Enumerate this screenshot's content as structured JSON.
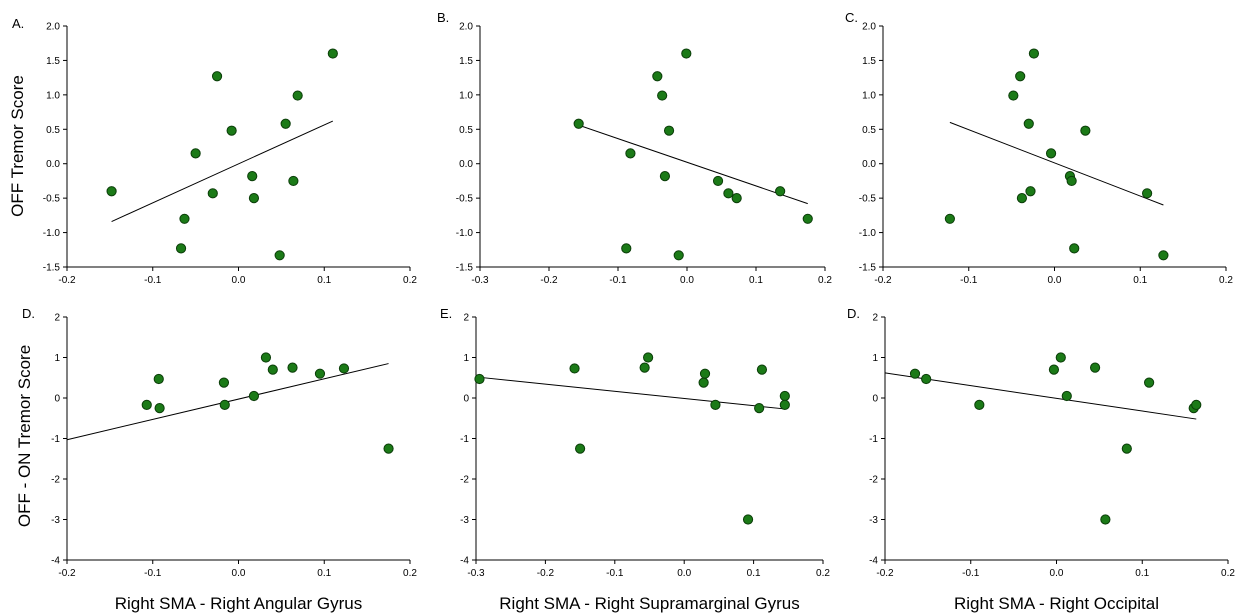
{
  "ylabels": [
    {
      "text": "OFF Tremor Score",
      "row": 0
    },
    {
      "text": "OFF - ON Tremor Score",
      "row": 1
    }
  ],
  "chart_data": [
    {
      "type": "scatter",
      "label": "A.",
      "xlabel": "",
      "xlim": [
        -0.2,
        0.2
      ],
      "ylim": [
        -1.5,
        2.0
      ],
      "xticks": [
        "-0.2",
        "-0.1",
        "0.0",
        "0.1",
        "0.2"
      ],
      "yticks": [
        "-1.5",
        "-1.0",
        "-0.5",
        "0.0",
        "0.5",
        "1.0",
        "1.5",
        "2.0"
      ],
      "x": [
        -0.148,
        -0.067,
        -0.063,
        -0.05,
        -0.03,
        -0.025,
        -0.008,
        0.016,
        0.018,
        0.048,
        0.055,
        0.064,
        0.069,
        0.11
      ],
      "y": [
        -0.4,
        -1.23,
        -0.8,
        0.15,
        -0.43,
        1.27,
        0.48,
        -0.18,
        -0.5,
        -1.33,
        0.58,
        -0.25,
        0.99,
        1.6
      ],
      "fit": {
        "x": [
          -0.148,
          0.11
        ],
        "y": [
          -0.84,
          0.62
        ]
      }
    },
    {
      "type": "scatter",
      "label": "B.",
      "xlabel": "",
      "xlim": [
        -0.3,
        0.2
      ],
      "ylim": [
        -1.5,
        2.0
      ],
      "xticks": [
        "-0.3",
        "-0.2",
        "-0.1",
        "0.0",
        "0.1",
        "0.2"
      ],
      "yticks": [
        "-1.5",
        "-1.0",
        "-0.5",
        "0.0",
        "0.5",
        "1.0",
        "1.5",
        "2.0"
      ],
      "x": [
        -0.157,
        -0.088,
        -0.082,
        -0.043,
        -0.036,
        -0.032,
        -0.026,
        -0.012,
        -0.001,
        0.045,
        0.06,
        0.072,
        0.135,
        0.175
      ],
      "y": [
        0.58,
        -1.23,
        0.15,
        1.27,
        0.99,
        -0.18,
        0.48,
        -1.33,
        1.6,
        -0.25,
        -0.43,
        -0.5,
        -0.4,
        -0.8
      ],
      "fit": {
        "x": [
          -0.157,
          0.175
        ],
        "y": [
          0.56,
          -0.58
        ]
      }
    },
    {
      "type": "scatter",
      "label": "C.",
      "xlabel": "",
      "xlim": [
        -0.2,
        0.2
      ],
      "ylim": [
        -1.5,
        2.0
      ],
      "xticks": [
        "-0.2",
        "-0.1",
        "0.0",
        "0.1",
        "0.2"
      ],
      "yticks": [
        "-1.5",
        "-1.0",
        "-0.5",
        "0.0",
        "0.5",
        "1.0",
        "1.5",
        "2.0"
      ],
      "x": [
        -0.122,
        -0.048,
        -0.04,
        -0.038,
        -0.03,
        -0.028,
        -0.024,
        -0.004,
        0.018,
        0.02,
        0.023,
        0.036,
        0.108,
        0.127
      ],
      "y": [
        -0.8,
        0.99,
        1.27,
        -0.5,
        0.58,
        -0.4,
        1.6,
        0.15,
        -0.18,
        -0.25,
        -1.23,
        0.48,
        -0.43,
        -1.33
      ],
      "fit": {
        "x": [
          -0.122,
          0.127
        ],
        "y": [
          0.6,
          -0.6
        ]
      }
    },
    {
      "type": "scatter",
      "label": "D.",
      "xlabel": "Right SMA - Right Angular Gyrus",
      "xlim": [
        -0.2,
        0.2
      ],
      "ylim": [
        -4,
        2
      ],
      "xticks": [
        "-0.2",
        "-0.1",
        "0.0",
        "0.1",
        "0.2"
      ],
      "yticks": [
        "-4",
        "-3",
        "-2",
        "-1",
        "0",
        "1",
        "2"
      ],
      "x": [
        -0.107,
        -0.093,
        -0.092,
        -0.017,
        -0.016,
        0.018,
        0.032,
        0.04,
        0.063,
        0.095,
        0.123,
        0.175
      ],
      "y": [
        -0.17,
        0.47,
        -0.25,
        0.38,
        -0.17,
        0.05,
        1.0,
        0.7,
        0.75,
        0.6,
        0.73,
        -1.25
      ],
      "fit": {
        "x": [
          -0.2,
          0.175
        ],
        "y": [
          -1.03,
          0.85
        ]
      }
    },
    {
      "type": "scatter",
      "label": "E.",
      "xlabel": "Right SMA - Right Supramarginal Gyrus",
      "xlim": [
        -0.3,
        0.2
      ],
      "ylim": [
        -4,
        2
      ],
      "xticks": [
        "-0.3",
        "-0.2",
        "-0.1",
        "0.0",
        "0.1",
        "0.2"
      ],
      "yticks": [
        "-4",
        "-3",
        "-2",
        "-1",
        "0",
        "1",
        "2"
      ],
      "x": [
        -0.295,
        -0.158,
        -0.15,
        -0.057,
        -0.052,
        0.028,
        0.03,
        0.045,
        0.092,
        0.108,
        0.112,
        0.145,
        0.145
      ],
      "y": [
        0.47,
        0.73,
        -1.25,
        0.75,
        1.0,
        0.38,
        0.6,
        -0.17,
        -3.0,
        -0.25,
        0.7,
        0.05,
        -0.17
      ],
      "fit": {
        "x": [
          -0.3,
          0.145
        ],
        "y": [
          0.52,
          -0.27
        ]
      }
    },
    {
      "type": "scatter",
      "label": "D.",
      "xlabel": "Right SMA - Right Occipital",
      "xlim": [
        -0.2,
        0.2
      ],
      "ylim": [
        -4,
        2
      ],
      "xticks": [
        "-0.2",
        "-0.1",
        "0.0",
        "0.1",
        "0.2"
      ],
      "yticks": [
        "-4",
        "-3",
        "-2",
        "-1",
        "0",
        "1",
        "2"
      ],
      "x": [
        -0.165,
        -0.152,
        -0.09,
        -0.003,
        0.005,
        0.012,
        0.045,
        0.082,
        0.057,
        0.108,
        0.16,
        0.163
      ],
      "y": [
        0.6,
        0.47,
        -0.17,
        0.7,
        1.0,
        0.05,
        0.75,
        -1.25,
        -3.0,
        0.38,
        -0.25,
        -0.17
      ],
      "fit": {
        "x": [
          -0.2,
          0.163
        ],
        "y": [
          0.62,
          -0.52
        ]
      }
    }
  ]
}
